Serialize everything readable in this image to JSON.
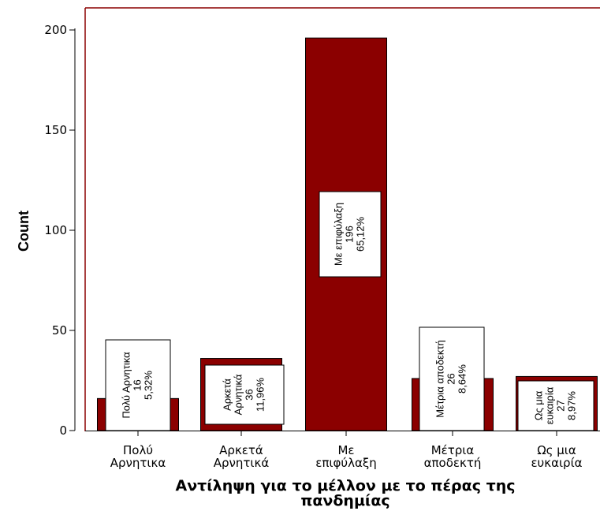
{
  "chart_data": {
    "type": "bar",
    "categories": [
      [
        "Πολύ",
        "Αρνητικα"
      ],
      [
        "Αρκετά",
        "Αρνητικά"
      ],
      [
        "Με",
        "επιφύλαξη"
      ],
      [
        "Μέτρια",
        "αποδεκτή"
      ],
      [
        "Ως μια",
        "ευκαιρία"
      ]
    ],
    "values": [
      16,
      36,
      196,
      26,
      27
    ],
    "data_labels": [
      [
        "Πολύ Αρνητικα",
        "16",
        "5,32%"
      ],
      [
        "Αρκετά",
        "Αρνητικά",
        "36",
        "11,96%"
      ],
      [
        "Με επιφύλαξη",
        "196",
        "65,12%"
      ],
      [
        "Μέτρια αποδεκτή",
        "26",
        "8,64%"
      ],
      [
        "Ως μια",
        "ευκαιρία",
        "27",
        "8,97%"
      ]
    ],
    "xlabel": [
      "Αντίληψη για το μέλλον με το πέρας της",
      "πανδημίας"
    ],
    "ylabel": "Count",
    "ylim": [
      0,
      200
    ],
    "yticks": [
      0,
      50,
      100,
      150,
      200
    ],
    "grid": false,
    "bar_color": "#8b0000",
    "frame_color": "#8b0000"
  }
}
